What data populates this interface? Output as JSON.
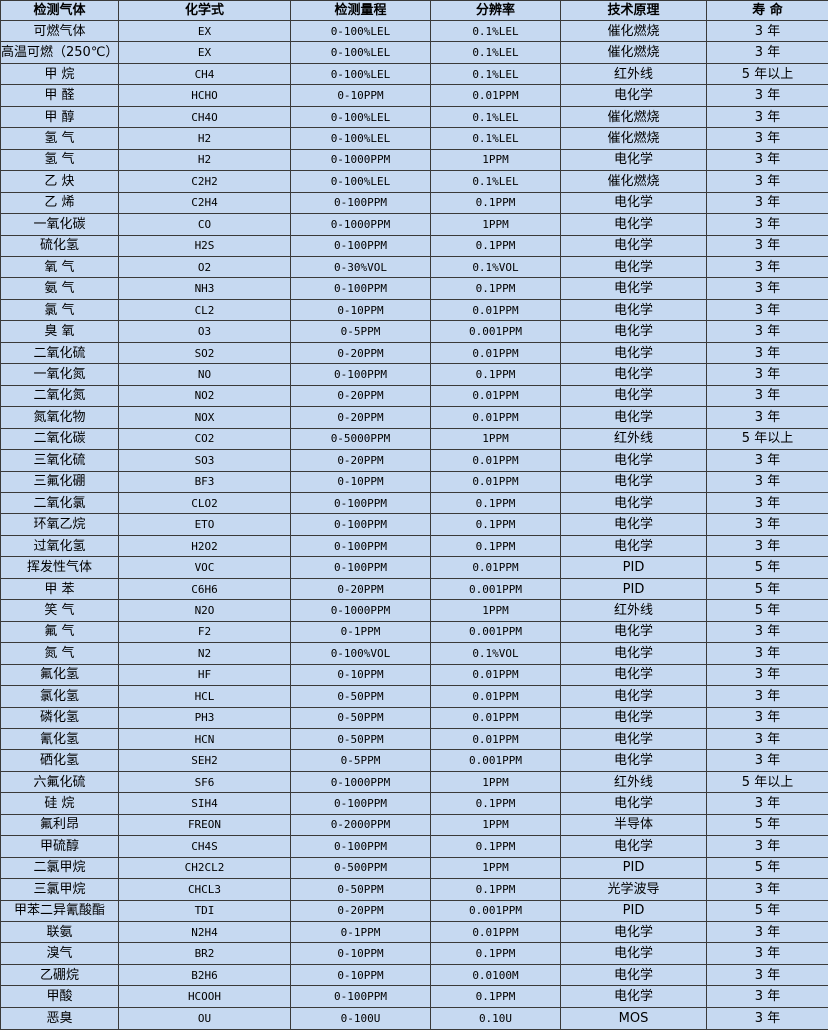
{
  "table": {
    "header": [
      "检测气体",
      "化学式",
      "检测量程",
      "分辨率",
      "技术原理",
      "寿 命"
    ],
    "rows": [
      [
        "可燃气体",
        "EX",
        "0-100%LEL",
        "0.1%LEL",
        "催化燃烧",
        "3 年"
      ],
      [
        "高温可燃（250℃）",
        "EX",
        "0-100%LEL",
        "0.1%LEL",
        "催化燃烧",
        "3 年"
      ],
      [
        "甲 烷",
        "CH4",
        "0-100%LEL",
        "0.1%LEL",
        "红外线",
        "5 年以上"
      ],
      [
        "甲 醛",
        "HCHO",
        "0-10PPM",
        "0.01PPM",
        "电化学",
        "3 年"
      ],
      [
        "甲 醇",
        "CH4O",
        "0-100%LEL",
        "0.1%LEL",
        "催化燃烧",
        "3 年"
      ],
      [
        "氢 气",
        "H2",
        "0-100%LEL",
        "0.1%LEL",
        "催化燃烧",
        "3 年"
      ],
      [
        "氢 气",
        "H2",
        "0-1000PPM",
        "1PPM",
        "电化学",
        "3 年"
      ],
      [
        "乙 炔",
        "C2H2",
        "0-100%LEL",
        "0.1%LEL",
        "催化燃烧",
        "3 年"
      ],
      [
        "乙 烯",
        "C2H4",
        "0-100PPM",
        "0.1PPM",
        "电化学",
        "3 年"
      ],
      [
        "一氧化碳",
        "CO",
        "0-1000PPM",
        "1PPM",
        "电化学",
        "3 年"
      ],
      [
        "硫化氢",
        "H2S",
        "0-100PPM",
        "0.1PPM",
        "电化学",
        "3 年"
      ],
      [
        "氧 气",
        "O2",
        "0-30%VOL",
        "0.1%VOL",
        "电化学",
        "3 年"
      ],
      [
        "氨 气",
        "NH3",
        "0-100PPM",
        "0.1PPM",
        "电化学",
        "3 年"
      ],
      [
        "氯 气",
        "CL2",
        "0-10PPM",
        "0.01PPM",
        "电化学",
        "3 年"
      ],
      [
        "臭 氧",
        "O3",
        "0-5PPM",
        "0.001PPM",
        "电化学",
        "3 年"
      ],
      [
        "二氧化硫",
        "SO2",
        "0-20PPM",
        "0.01PPM",
        "电化学",
        "3 年"
      ],
      [
        "一氧化氮",
        "NO",
        "0-100PPM",
        "0.1PPM",
        "电化学",
        "3 年"
      ],
      [
        "二氧化氮",
        "NO2",
        "0-20PPM",
        "0.01PPM",
        "电化学",
        "3 年"
      ],
      [
        "氮氧化物",
        "NOX",
        "0-20PPM",
        "0.01PPM",
        "电化学",
        "3 年"
      ],
      [
        "二氧化碳",
        "CO2",
        "0-5000PPM",
        "1PPM",
        "红外线",
        "5 年以上"
      ],
      [
        "三氧化硫",
        "SO3",
        "0-20PPM",
        "0.01PPM",
        "电化学",
        "3 年"
      ],
      [
        "三氟化硼",
        "BF3",
        "0-10PPM",
        "0.01PPM",
        "电化学",
        "3 年"
      ],
      [
        "二氧化氯",
        "CLO2",
        "0-100PPM",
        "0.1PPM",
        "电化学",
        "3 年"
      ],
      [
        "环氧乙烷",
        "ETO",
        "0-100PPM",
        "0.1PPM",
        "电化学",
        "3 年"
      ],
      [
        "过氧化氢",
        "H2O2",
        "0-100PPM",
        "0.1PPM",
        "电化学",
        "3 年"
      ],
      [
        "挥发性气体",
        "VOC",
        "0-100PPM",
        "0.01PPM",
        "PID",
        "5 年"
      ],
      [
        "甲 苯",
        "C6H6",
        "0-20PPM",
        "0.001PPM",
        "PID",
        "5 年"
      ],
      [
        "笑 气",
        "N2O",
        "0-1000PPM",
        "1PPM",
        "红外线",
        "5 年"
      ],
      [
        "氟 气",
        "F2",
        "0-1PPM",
        "0.001PPM",
        "电化学",
        "3 年"
      ],
      [
        "氮 气",
        "N2",
        "0-100%VOL",
        "0.1%VOL",
        "电化学",
        "3 年"
      ],
      [
        "氟化氢",
        "HF",
        "0-10PPM",
        "0.01PPM",
        "电化学",
        "3 年"
      ],
      [
        "氯化氢",
        "HCL",
        "0-50PPM",
        "0.01PPM",
        "电化学",
        "3 年"
      ],
      [
        "磷化氢",
        "PH3",
        "0-50PPM",
        "0.01PPM",
        "电化学",
        "3 年"
      ],
      [
        "氰化氢",
        "HCN",
        "0-50PPM",
        "0.01PPM",
        "电化学",
        "3 年"
      ],
      [
        "硒化氢",
        "SEH2",
        "0-5PPM",
        "0.001PPM",
        "电化学",
        "3 年"
      ],
      [
        "六氟化硫",
        "SF6",
        "0-1000PPM",
        "1PPM",
        "红外线",
        "5 年以上"
      ],
      [
        "硅 烷",
        "SIH4",
        "0-100PPM",
        "0.1PPM",
        "电化学",
        "3 年"
      ],
      [
        "氟利昂",
        "FREON",
        "0-2000PPM",
        "1PPM",
        "半导体",
        "5 年"
      ],
      [
        "甲硫醇",
        "CH4S",
        "0-100PPM",
        "0.1PPM",
        "电化学",
        "3 年"
      ],
      [
        "二氯甲烷",
        "CH2CL2",
        "0-500PPM",
        "1PPM",
        "PID",
        "5 年"
      ],
      [
        "三氯甲烷",
        "CHCL3",
        "0-50PPM",
        "0.1PPM",
        "光学波导",
        "3 年"
      ],
      [
        "甲苯二异氰酸酯",
        "TDI",
        "0-20PPM",
        "0.001PPM",
        "PID",
        "5 年"
      ],
      [
        "联氨",
        "N2H4",
        "0-1PPM",
        "0.01PPM",
        "电化学",
        "3 年"
      ],
      [
        "溴气",
        "BR2",
        "0-10PPM",
        "0.1PPM",
        "电化学",
        "3 年"
      ],
      [
        "乙硼烷",
        "B2H6",
        "0-10PPM",
        "0.0100M",
        "电化学",
        "3 年"
      ],
      [
        "甲酸",
        "HCOOH",
        "0-100PPM",
        "0.1PPM",
        "电化学",
        "3 年"
      ],
      [
        "恶臭",
        "OU",
        "0-100U",
        "0.10U",
        "MOS",
        "3 年"
      ]
    ]
  }
}
